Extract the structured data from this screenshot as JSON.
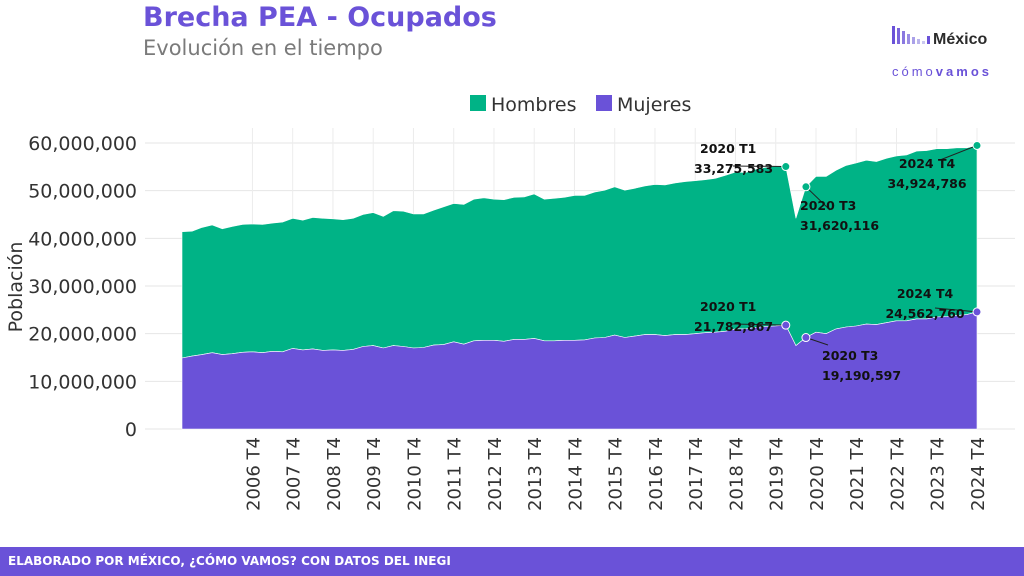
{
  "header": {
    "title": "Brecha PEA - Ocupados",
    "subtitle": "Evolución en el tiempo"
  },
  "logo": {
    "name": "México",
    "tagline_a": "cómo",
    "tagline_b": "vamos"
  },
  "footer": {
    "text": "ELABORADO POR MÉXICO, ¿CÓMO VAMOS? CON DATOS DEL INEGI"
  },
  "colors": {
    "hombres": "#00b386",
    "mujeres": "#6a52d8",
    "accent": "#6a52d8"
  },
  "chart_data": {
    "type": "area",
    "stacked": true,
    "title": "Brecha PEA - Ocupados",
    "subtitle": "Evolución en el tiempo",
    "ylabel": "Población",
    "xlabel": "",
    "ylim": [
      0,
      60000000
    ],
    "yticks": [
      "0",
      "10,000,000",
      "20,000,000",
      "30,000,000",
      "40,000,000",
      "50,000,000",
      "60,000,000"
    ],
    "xticks": [
      "2006 T4",
      "2007 T4",
      "2008 T4",
      "2009 T4",
      "2010 T4",
      "2011 T4",
      "2012 T4",
      "2013 T4",
      "2014 T4",
      "2015 T4",
      "2016 T4",
      "2017 T4",
      "2018 T4",
      "2019 T4",
      "2020 T4",
      "2021 T4",
      "2022 T4",
      "2023 T4",
      "2024 T4"
    ],
    "grid": true,
    "legend_position": "top",
    "x": [
      "2005 T1",
      "2005 T2",
      "2005 T3",
      "2005 T4",
      "2006 T1",
      "2006 T2",
      "2006 T3",
      "2006 T4",
      "2007 T1",
      "2007 T2",
      "2007 T3",
      "2007 T4",
      "2008 T1",
      "2008 T2",
      "2008 T3",
      "2008 T4",
      "2009 T1",
      "2009 T2",
      "2009 T3",
      "2009 T4",
      "2010 T1",
      "2010 T2",
      "2010 T3",
      "2010 T4",
      "2011 T1",
      "2011 T2",
      "2011 T3",
      "2011 T4",
      "2012 T1",
      "2012 T2",
      "2012 T3",
      "2012 T4",
      "2013 T1",
      "2013 T2",
      "2013 T3",
      "2013 T4",
      "2014 T1",
      "2014 T2",
      "2014 T3",
      "2014 T4",
      "2015 T1",
      "2015 T2",
      "2015 T3",
      "2015 T4",
      "2016 T1",
      "2016 T2",
      "2016 T3",
      "2016 T4",
      "2017 T1",
      "2017 T2",
      "2017 T3",
      "2017 T4",
      "2018 T1",
      "2018 T2",
      "2018 T3",
      "2018 T4",
      "2019 T1",
      "2019 T2",
      "2019 T3",
      "2019 T4",
      "2020 T1",
      "2020 T2",
      "2020 T3",
      "2020 T4",
      "2021 T1",
      "2021 T2",
      "2021 T3",
      "2021 T4",
      "2022 T1",
      "2022 T2",
      "2022 T3",
      "2022 T4",
      "2023 T1",
      "2023 T2",
      "2023 T3",
      "2023 T4",
      "2024 T1",
      "2024 T2",
      "2024 T3",
      "2024 T4"
    ],
    "series": [
      {
        "name": "Mujeres",
        "values": [
          14900000,
          15300000,
          15600000,
          16000000,
          15600000,
          15800000,
          16100000,
          16200000,
          16000000,
          16300000,
          16200000,
          16900000,
          16600000,
          16800000,
          16500000,
          16600000,
          16500000,
          16700000,
          17300000,
          17500000,
          17000000,
          17500000,
          17300000,
          17000000,
          17100000,
          17600000,
          17700000,
          18300000,
          17800000,
          18500000,
          18600000,
          18600000,
          18400000,
          18800000,
          18800000,
          19000000,
          18500000,
          18500000,
          18600000,
          18600000,
          18700000,
          19100000,
          19200000,
          19700000,
          19200000,
          19500000,
          19800000,
          19800000,
          19600000,
          19800000,
          19800000,
          20000000,
          20200000,
          20300000,
          20500000,
          21000000,
          21000000,
          21300000,
          21500000,
          21600000,
          21782867,
          17500000,
          19190597,
          20300000,
          20000000,
          21000000,
          21400000,
          21600000,
          22000000,
          21900000,
          22300000,
          22700000,
          22700000,
          23100000,
          23100000,
          23500000,
          23600000,
          23800000,
          24000000,
          24562760
        ]
      },
      {
        "name": "Hombres",
        "values": [
          26500000,
          26200000,
          26700000,
          26800000,
          26400000,
          26700000,
          26800000,
          26800000,
          26900000,
          26900000,
          27200000,
          27300000,
          27200000,
          27600000,
          27700000,
          27500000,
          27400000,
          27500000,
          27700000,
          27900000,
          27600000,
          28300000,
          28400000,
          28100000,
          28000000,
          28300000,
          28900000,
          29000000,
          29300000,
          29700000,
          29900000,
          29600000,
          29700000,
          29800000,
          29900000,
          30300000,
          29700000,
          29900000,
          30000000,
          30400000,
          30300000,
          30600000,
          30900000,
          31100000,
          30900000,
          31000000,
          31200000,
          31500000,
          31600000,
          31800000,
          32100000,
          32100000,
          32100000,
          32300000,
          32700000,
          32900000,
          32800000,
          33200000,
          33400000,
          33600000,
          33275583,
          26700000,
          31620116,
          32700000,
          33000000,
          33300000,
          33900000,
          34200000,
          34400000,
          34200000,
          34500000,
          34600000,
          34800000,
          35200000,
          35300000,
          35300000,
          35200000,
          35200000,
          35000000,
          34924786
        ]
      }
    ],
    "annotations": [
      {
        "series": "Hombres",
        "x": "2020 T1",
        "label": "2020 T1",
        "value": "33,275,583"
      },
      {
        "series": "Hombres",
        "x": "2020 T3",
        "label": "2020 T3",
        "value": "31,620,116"
      },
      {
        "series": "Hombres",
        "x": "2024 T4",
        "label": "2024 T4",
        "value": "34,924,786"
      },
      {
        "series": "Mujeres",
        "x": "2020 T1",
        "label": "2020 T1",
        "value": "21,782,867"
      },
      {
        "series": "Mujeres",
        "x": "2020 T3",
        "label": "2020 T3",
        "value": "19,190,597"
      },
      {
        "series": "Mujeres",
        "x": "2024 T4",
        "label": "2024 T4",
        "value": "24,562,760"
      }
    ]
  }
}
